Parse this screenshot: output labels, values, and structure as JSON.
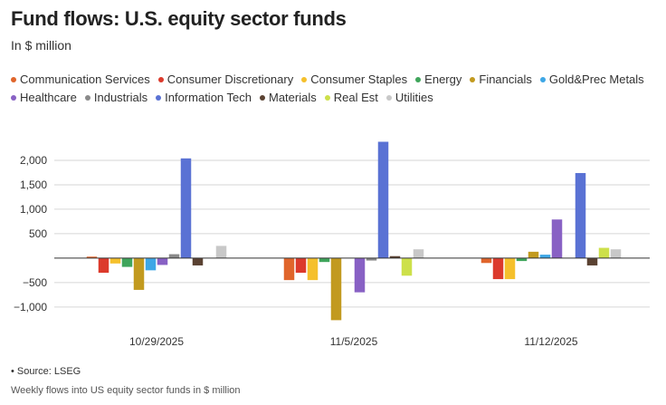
{
  "header": {
    "title": "Fund flows: U.S. equity sector funds",
    "subtitle": "In $ million"
  },
  "footer": {
    "source": "• Source: LSEG",
    "caption": "Weekly flows into US equity sector funds in $ million"
  },
  "chart_data": {
    "type": "bar",
    "ylabel": "",
    "xlabel": "",
    "ylim": [
      -1300,
      2500
    ],
    "yticks": [
      -1000,
      -500,
      500,
      1000,
      1500,
      2000
    ],
    "ytick_labels": [
      "−1,000",
      "−500",
      "500",
      "1,000",
      "1,500",
      "2,000"
    ],
    "grid": true,
    "legend_position": "top",
    "categories": [
      "10/29/2025",
      "11/5/2025",
      "11/12/2025"
    ],
    "series": [
      {
        "name": "Communication Services",
        "color": "#e0652b",
        "values": [
          30,
          -450,
          -100
        ]
      },
      {
        "name": "Consumer Discretionary",
        "color": "#dc3a2c",
        "values": [
          -300,
          -300,
          -430
        ]
      },
      {
        "name": "Consumer Staples",
        "color": "#f5c02c",
        "values": [
          -110,
          -450,
          -430
        ]
      },
      {
        "name": "Energy",
        "color": "#3fa55b",
        "values": [
          -180,
          -80,
          -60
        ]
      },
      {
        "name": "Financials",
        "color": "#c29a1f",
        "values": [
          -650,
          -1270,
          130
        ]
      },
      {
        "name": "Gold&Prec Metals",
        "color": "#3ea7e6",
        "values": [
          -250,
          0,
          70
        ]
      },
      {
        "name": "Healthcare",
        "color": "#8861c4",
        "values": [
          -140,
          -700,
          790
        ]
      },
      {
        "name": "Industrials",
        "color": "#8a8a8a",
        "values": [
          80,
          -50,
          0
        ]
      },
      {
        "name": "Information Tech",
        "color": "#5a72d4",
        "values": [
          2040,
          2380,
          1740
        ]
      },
      {
        "name": "Materials",
        "color": "#5a4232",
        "values": [
          -150,
          40,
          -150
        ]
      },
      {
        "name": "Real Est",
        "color": "#cde04a",
        "values": [
          0,
          -360,
          210
        ]
      },
      {
        "name": "Utilities",
        "color": "#c8c8c8",
        "values": [
          250,
          180,
          180
        ]
      }
    ]
  }
}
